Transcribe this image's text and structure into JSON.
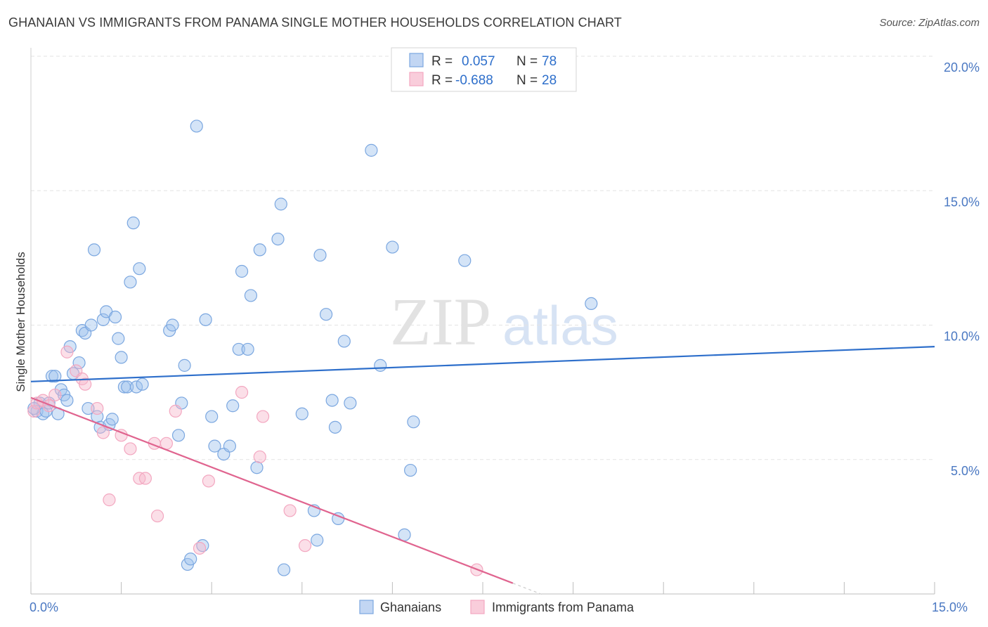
{
  "title": "GHANAIAN VS IMMIGRANTS FROM PANAMA SINGLE MOTHER HOUSEHOLDS CORRELATION CHART",
  "source": "Source: ZipAtlas.com",
  "watermark": {
    "zip": "ZIP",
    "atlas": "atlas"
  },
  "colors": {
    "blue": "#7ba7e0",
    "blue_line": "#2e6fcb",
    "pink": "#f3a7c0",
    "pink_line": "#e0648f",
    "tick_text": "#4a78c2"
  },
  "stats": [
    {
      "r_label": "R =",
      "r_value": "0.057",
      "n_label": "N =",
      "n_value": "78"
    },
    {
      "r_label": "R =",
      "r_value": "-0.688",
      "n_label": "N =",
      "n_value": "28"
    }
  ],
  "chart_data": {
    "type": "scatter",
    "title": "GHANAIAN VS IMMIGRANTS FROM PANAMA SINGLE MOTHER HOUSEHOLDS CORRELATION CHART",
    "xlabel": "",
    "ylabel": "Single Mother Households",
    "xlim": [
      0,
      15
    ],
    "ylim": [
      0,
      20
    ],
    "x_tick_labels": [
      "0.0%",
      "15.0%"
    ],
    "y_ticks": [
      5,
      10,
      15,
      20
    ],
    "y_tick_labels": [
      "5.0%",
      "10.0%",
      "15.0%",
      "20.0%"
    ],
    "grid": true,
    "legend_position": "bottom",
    "series": [
      {
        "name": "Ghanaians",
        "trend": [
          [
            0,
            7.9
          ],
          [
            15,
            9.2
          ]
        ],
        "points": [
          [
            0.1,
            6.8
          ],
          [
            0.15,
            7.1
          ],
          [
            0.2,
            6.7
          ],
          [
            0.25,
            6.8
          ],
          [
            0.3,
            7.1
          ],
          [
            0.35,
            8.1
          ],
          [
            0.4,
            8.1
          ],
          [
            0.45,
            6.7
          ],
          [
            0.5,
            7.6
          ],
          [
            0.55,
            7.4
          ],
          [
            0.6,
            7.2
          ],
          [
            0.65,
            9.2
          ],
          [
            0.7,
            8.2
          ],
          [
            0.8,
            8.6
          ],
          [
            0.85,
            9.8
          ],
          [
            0.9,
            9.7
          ],
          [
            0.95,
            6.9
          ],
          [
            1.0,
            10.0
          ],
          [
            1.05,
            12.8
          ],
          [
            1.1,
            6.6
          ],
          [
            1.15,
            6.2
          ],
          [
            1.2,
            10.2
          ],
          [
            1.25,
            10.5
          ],
          [
            1.3,
            6.3
          ],
          [
            1.35,
            6.5
          ],
          [
            1.4,
            10.3
          ],
          [
            1.45,
            9.5
          ],
          [
            1.5,
            8.8
          ],
          [
            1.55,
            7.7
          ],
          [
            1.6,
            7.7
          ],
          [
            1.65,
            11.6
          ],
          [
            1.7,
            13.8
          ],
          [
            1.75,
            7.7
          ],
          [
            1.8,
            12.1
          ],
          [
            1.85,
            7.8
          ],
          [
            2.3,
            9.8
          ],
          [
            2.35,
            10.0
          ],
          [
            2.45,
            5.9
          ],
          [
            2.5,
            7.1
          ],
          [
            2.55,
            8.5
          ],
          [
            2.6,
            1.1
          ],
          [
            2.65,
            1.3
          ],
          [
            2.75,
            17.4
          ],
          [
            2.85,
            1.8
          ],
          [
            2.9,
            10.2
          ],
          [
            3.0,
            6.6
          ],
          [
            3.05,
            5.5
          ],
          [
            3.2,
            5.2
          ],
          [
            3.3,
            5.5
          ],
          [
            3.35,
            7.0
          ],
          [
            3.45,
            9.1
          ],
          [
            3.5,
            12.0
          ],
          [
            3.6,
            9.1
          ],
          [
            3.65,
            11.1
          ],
          [
            3.75,
            4.7
          ],
          [
            3.8,
            12.8
          ],
          [
            4.1,
            13.2
          ],
          [
            4.15,
            14.5
          ],
          [
            4.2,
            0.9
          ],
          [
            4.5,
            6.7
          ],
          [
            4.7,
            3.1
          ],
          [
            4.75,
            2.0
          ],
          [
            4.8,
            12.6
          ],
          [
            4.9,
            10.4
          ],
          [
            5.0,
            7.2
          ],
          [
            5.05,
            6.2
          ],
          [
            5.1,
            2.8
          ],
          [
            5.2,
            9.4
          ],
          [
            5.3,
            7.1
          ],
          [
            5.65,
            16.5
          ],
          [
            5.8,
            8.5
          ],
          [
            6.0,
            12.9
          ],
          [
            6.2,
            2.2
          ],
          [
            6.3,
            4.6
          ],
          [
            6.35,
            6.4
          ],
          [
            7.2,
            12.4
          ],
          [
            9.3,
            10.8
          ],
          [
            0.05,
            6.9
          ]
        ]
      },
      {
        "name": "Immigrants from Panama",
        "trend": [
          [
            0,
            7.3
          ],
          [
            8.0,
            0.4
          ]
        ],
        "points": [
          [
            0.05,
            6.8
          ],
          [
            0.1,
            7.1
          ],
          [
            0.2,
            7.2
          ],
          [
            0.3,
            7.0
          ],
          [
            0.4,
            7.4
          ],
          [
            0.6,
            9.0
          ],
          [
            0.75,
            8.3
          ],
          [
            0.85,
            8.0
          ],
          [
            0.9,
            7.8
          ],
          [
            1.1,
            6.9
          ],
          [
            1.2,
            6.0
          ],
          [
            1.3,
            3.5
          ],
          [
            1.5,
            5.9
          ],
          [
            1.65,
            5.4
          ],
          [
            1.8,
            4.3
          ],
          [
            1.9,
            4.3
          ],
          [
            2.05,
            5.6
          ],
          [
            2.1,
            2.9
          ],
          [
            2.25,
            5.6
          ],
          [
            2.4,
            6.8
          ],
          [
            2.8,
            1.7
          ],
          [
            2.95,
            4.2
          ],
          [
            3.5,
            7.5
          ],
          [
            3.8,
            5.1
          ],
          [
            3.85,
            6.6
          ],
          [
            4.3,
            3.1
          ],
          [
            4.55,
            1.8
          ],
          [
            7.4,
            0.9
          ]
        ]
      }
    ]
  },
  "legend": [
    "Ghanaians",
    "Immigrants from Panama"
  ]
}
